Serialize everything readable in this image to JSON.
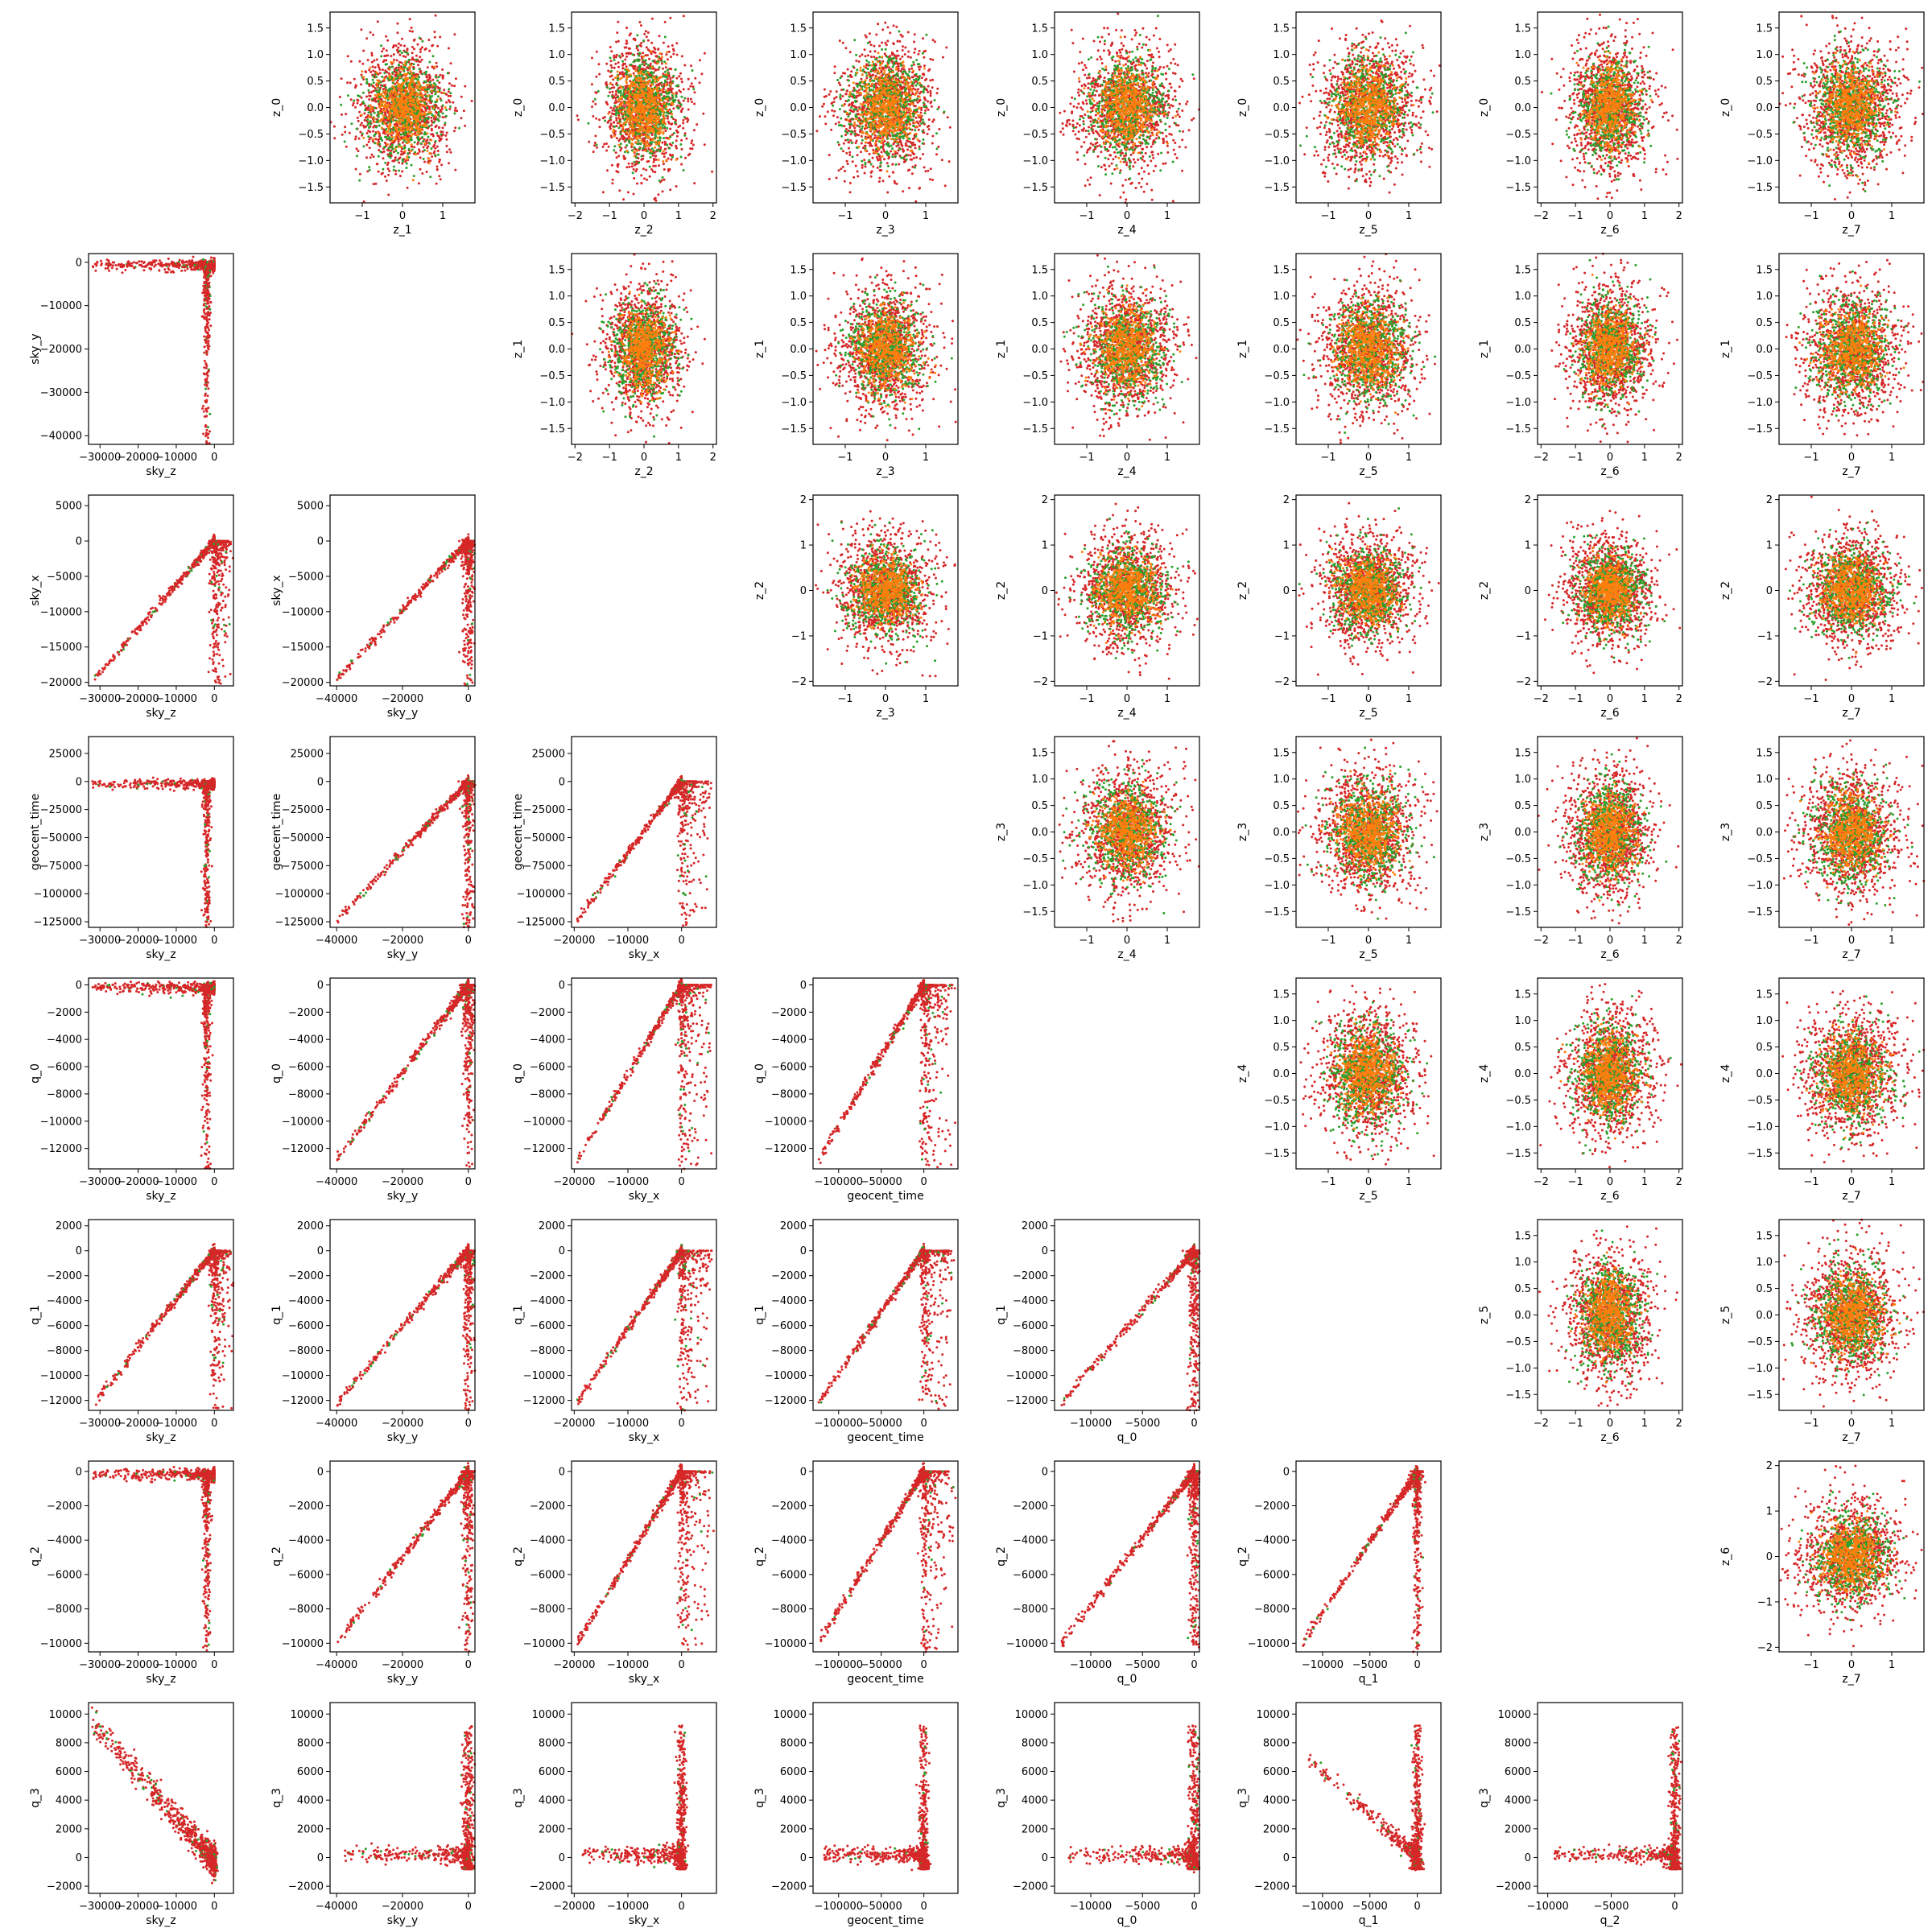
{
  "colors": {
    "primary": "#d62728",
    "secondary": "#2ca02c",
    "overlap": "#ff7f0e"
  },
  "chart_data": {
    "type": "scatter",
    "title": "",
    "figure": "pairwise scatter matrix",
    "series": [
      {
        "name": "series-red",
        "color": "#d62728"
      },
      {
        "name": "series-green",
        "color": "#2ca02c"
      },
      {
        "name": "series-orange",
        "color": "#ff7f0e"
      }
    ],
    "physical_params": [
      "sky_z",
      "sky_y",
      "sky_x",
      "geocent_time",
      "q_0",
      "q_1",
      "q_2",
      "q_3"
    ],
    "latent_params": [
      "z_0",
      "z_1",
      "z_2",
      "z_3",
      "z_4",
      "z_5",
      "z_6",
      "z_7"
    ],
    "physical_axes": {
      "sky_z": {
        "range": [
          -33000,
          5000
        ],
        "ticks": [
          -30000,
          -20000,
          -10000,
          0
        ],
        "tick_labels": [
          "−30000",
          "−20000",
          "−10000",
          "0"
        ]
      },
      "sky_y": {
        "range": [
          -42000,
          2000
        ],
        "ticks": [
          -40000,
          -30000,
          -20000,
          -10000,
          0
        ],
        "tick_labels": [
          "−40000",
          "−30000",
          "−20000",
          "−10000",
          "0"
        ]
      },
      "sky_x": {
        "range": [
          -20500,
          6500
        ],
        "ticks": [
          -20000,
          -15000,
          -10000,
          -5000,
          0,
          5000
        ],
        "tick_labels": [
          "−20000",
          "−15000",
          "−10000",
          "−5000",
          "0",
          "5000"
        ]
      },
      "geocent_time": {
        "range": [
          -130000,
          40000
        ],
        "ticks": [
          -125000,
          -100000,
          -75000,
          -50000,
          -25000,
          0,
          25000
        ],
        "tick_labels": [
          "−125000",
          "−100000",
          "−75000",
          "−50000",
          "−25000",
          "0",
          "25000"
        ]
      },
      "q_0": {
        "range": [
          -13500,
          500
        ],
        "ticks": [
          -12000,
          -10000,
          -8000,
          -6000,
          -4000,
          -2000,
          0
        ],
        "tick_labels": [
          "−12000",
          "−10000",
          "−8000",
          "−6000",
          "−4000",
          "−2000",
          "0"
        ]
      },
      "q_1": {
        "range": [
          -12800,
          2500
        ],
        "ticks": [
          -12000,
          -10000,
          -8000,
          -6000,
          -4000,
          -2000,
          0,
          2000
        ],
        "tick_labels": [
          "−12000",
          "−10000",
          "−8000",
          "−6000",
          "−4000",
          "−2000",
          "0",
          "2000"
        ]
      },
      "q_2": {
        "range": [
          -10500,
          600
        ],
        "ticks": [
          -10000,
          -8000,
          -6000,
          -4000,
          -2000,
          0
        ],
        "tick_labels": [
          "−10000",
          "−8000",
          "−6000",
          "−4000",
          "−2000",
          "0"
        ]
      },
      "q_3": {
        "range": [
          -2500,
          10800
        ],
        "ticks": [
          -2000,
          0,
          2000,
          4000,
          6000,
          8000,
          10000
        ],
        "tick_labels": [
          "−2000",
          "0",
          "2000",
          "4000",
          "6000",
          "8000",
          "10000"
        ]
      }
    },
    "latent_axes": {
      "z_0": {
        "range": [
          -1.8,
          1.8
        ],
        "ticks": [
          -1.5,
          -1.0,
          -0.5,
          0,
          0.5,
          1.0,
          1.5
        ],
        "tick_labels": [
          "−1.5",
          "−1.0",
          "−0.5",
          "0.0",
          "0.5",
          "1.0",
          "1.5"
        ]
      },
      "z_1": {
        "range": [
          -1.8,
          1.8
        ],
        "ticks": [
          -1.5,
          -1.0,
          -0.5,
          0,
          0.5,
          1.0,
          1.5
        ],
        "tick_labels": [
          "−1.5",
          "−1.0",
          "−0.5",
          "0.0",
          "0.5",
          "1.0",
          "1.5"
        ]
      },
      "z_2": {
        "range": [
          -2.1,
          2.1
        ],
        "ticks": [
          -2,
          -1,
          0,
          1,
          2
        ],
        "tick_labels": [
          "−2",
          "−1",
          "0",
          "1",
          "2"
        ]
      },
      "z_3": {
        "range": [
          -1.8,
          1.8
        ],
        "ticks": [
          -1.5,
          -1.0,
          -0.5,
          0,
          0.5,
          1.0,
          1.5
        ],
        "tick_labels": [
          "−1.5",
          "−1.0",
          "−0.5",
          "0.0",
          "0.5",
          "1.0",
          "1.5"
        ]
      },
      "z_4": {
        "range": [
          -1.8,
          1.8
        ],
        "ticks": [
          -1.5,
          -1.0,
          -0.5,
          0,
          0.5,
          1.0,
          1.5
        ],
        "tick_labels": [
          "−1.5",
          "−1.0",
          "−0.5",
          "0.0",
          "0.5",
          "1.0",
          "1.5"
        ]
      },
      "z_5": {
        "range": [
          -1.8,
          1.8
        ],
        "ticks": [
          -1.5,
          -1.0,
          -0.5,
          0,
          0.5,
          1.0,
          1.5
        ],
        "tick_labels": [
          "−1.5",
          "−1.0",
          "−0.5",
          "0.0",
          "0.5",
          "1.0",
          "1.5"
        ]
      },
      "z_6": {
        "range": [
          -2.1,
          2.1
        ],
        "ticks": [
          -2,
          -1,
          0,
          1,
          2
        ],
        "tick_labels": [
          "−2",
          "−1",
          "0",
          "1",
          "2"
        ]
      },
      "z_7": {
        "range": [
          -1.8,
          1.8
        ],
        "ticks": [
          -1,
          0,
          1
        ],
        "tick_labels": [
          "−1",
          "0",
          "1"
        ]
      }
    },
    "x_axis_range_overrides": {
      "z_1": {
        "range": [
          -1.8,
          1.8
        ],
        "ticks": [
          -1,
          0,
          1
        ],
        "tick_labels": [
          "−1",
          "0",
          "1"
        ]
      },
      "z_3": {
        "range": [
          -1.8,
          1.8
        ],
        "ticks": [
          -1,
          0,
          1
        ],
        "tick_labels": [
          "−1",
          "0",
          "1"
        ]
      },
      "z_4": {
        "range": [
          -1.8,
          1.8
        ],
        "ticks": [
          -1,
          0,
          1
        ],
        "tick_labels": [
          "−1",
          "0",
          "1"
        ]
      },
      "z_5": {
        "range": [
          -1.8,
          1.8
        ],
        "ticks": [
          -1,
          0,
          1
        ],
        "tick_labels": [
          "−1",
          "0",
          "1"
        ]
      },
      "sky_z": {
        "range": [
          -33000,
          5000
        ],
        "ticks": [
          -30000,
          -20000,
          -10000,
          0
        ],
        "tick_labels": [
          "−30000",
          "−20000",
          "−10000",
          "0"
        ]
      },
      "sky_y": {
        "range": [
          -42000,
          2000
        ],
        "ticks": [
          -40000,
          -20000,
          0
        ],
        "tick_labels": [
          "−40000",
          "−20000",
          "0"
        ]
      },
      "sky_x": {
        "range": [
          -20500,
          6500
        ],
        "ticks": [
          -20000,
          -10000,
          0
        ],
        "tick_labels": [
          "−20000",
          "−10000",
          "0"
        ]
      },
      "geocent_time": {
        "range": [
          -130000,
          40000
        ],
        "ticks": [
          -100000,
          -50000,
          0
        ],
        "tick_labels": [
          "−100000",
          "−50000",
          "0"
        ]
      },
      "q_0": {
        "range": [
          -13500,
          500
        ],
        "ticks": [
          -10000,
          -5000,
          0
        ],
        "tick_labels": [
          "−10000",
          "−5000",
          "0"
        ]
      },
      "q_1": {
        "range": [
          -12800,
          2500
        ],
        "ticks": [
          -10000,
          -5000,
          0
        ],
        "tick_labels": [
          "−10000",
          "−5000",
          "0"
        ]
      },
      "q_2": {
        "range": [
          -10800,
          600
        ],
        "ticks": [
          -10000,
          -5000,
          0
        ],
        "tick_labels": [
          "−10000",
          "−5000",
          "0"
        ]
      }
    },
    "panels_description": "Lower triangle: physical parameter pairs (x = column param, y = row param). Upper triangle: latent z_i (y) vs z_j (x) Gaussian clouds. Diagonal empty.",
    "physical_trend_models": {
      "sky_y|sky_z": "L-shape: points along sky_y≈0 for sky_z<0 and along sky_z≈0 for sky_y<0",
      "sky_x|sky_z": "cone toward negative; points near 0 dense",
      "geocent_time|sky_z": "horizontal band at 0 and vertical line at sky_z≈0",
      "q_3|sky_z": "negative linear trend q_3 ≈ -0.3*sky_z"
    }
  }
}
